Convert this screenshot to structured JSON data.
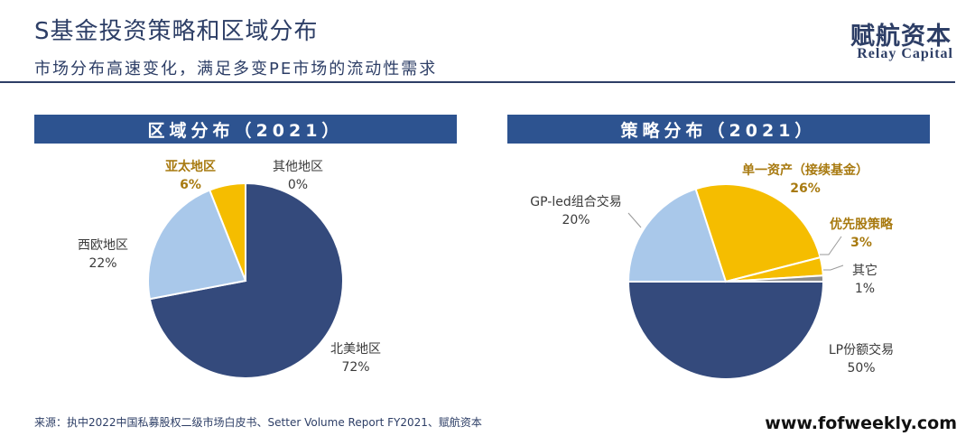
{
  "header": {
    "title": "S基金投资策略和区域分布",
    "subtitle": "市场分布高速变化，满足多变PE市场的流动性需求",
    "brand_cn": "赋航资本",
    "brand_en": "Relay Capital"
  },
  "footer": {
    "source": "来源：执中2022中国私募股权二级市场白皮书、Setter Volume Report FY2021、赋航资本",
    "website": "www.fofweekly.com"
  },
  "colors": {
    "navy": "#2d3e66",
    "header_band": "#2d5390",
    "slice_dark": "#344a7c",
    "slice_light": "#a9c8ea",
    "slice_gold": "#f5bd00",
    "slice_gray": "#8c8c8c",
    "highlight_text": "#a87a10"
  },
  "chart_data": [
    {
      "type": "pie",
      "title": "区域分布（2021）",
      "slices": [
        {
          "label": "北美地区",
          "value": 72,
          "pct_label": "72%",
          "color": "#344a7c",
          "highlight": false
        },
        {
          "label": "西欧地区",
          "value": 22,
          "pct_label": "22%",
          "color": "#a9c8ea",
          "highlight": false
        },
        {
          "label": "亚太地区",
          "value": 6,
          "pct_label": "6%",
          "color": "#f5bd00",
          "highlight": true
        },
        {
          "label": "其他地区",
          "value": 0,
          "pct_label": "0%",
          "color": "#8c8c8c",
          "highlight": false
        }
      ]
    },
    {
      "type": "pie",
      "title": "策略分布（2021）",
      "slices": [
        {
          "label": "LP份额交易",
          "value": 50,
          "pct_label": "50%",
          "color": "#344a7c",
          "highlight": false
        },
        {
          "label": "GP-led组合交易",
          "value": 20,
          "pct_label": "20%",
          "color": "#a9c8ea",
          "highlight": false
        },
        {
          "label": "单一资产（接续基金）",
          "value": 26,
          "pct_label": "26%",
          "color": "#f5bd00",
          "highlight": true
        },
        {
          "label": "优先股策略",
          "value": 3,
          "pct_label": "3%",
          "color": "#f5bd00",
          "highlight": true
        },
        {
          "label": "其它",
          "value": 1,
          "pct_label": "1%",
          "color": "#8c8c8c",
          "highlight": false
        }
      ]
    }
  ]
}
